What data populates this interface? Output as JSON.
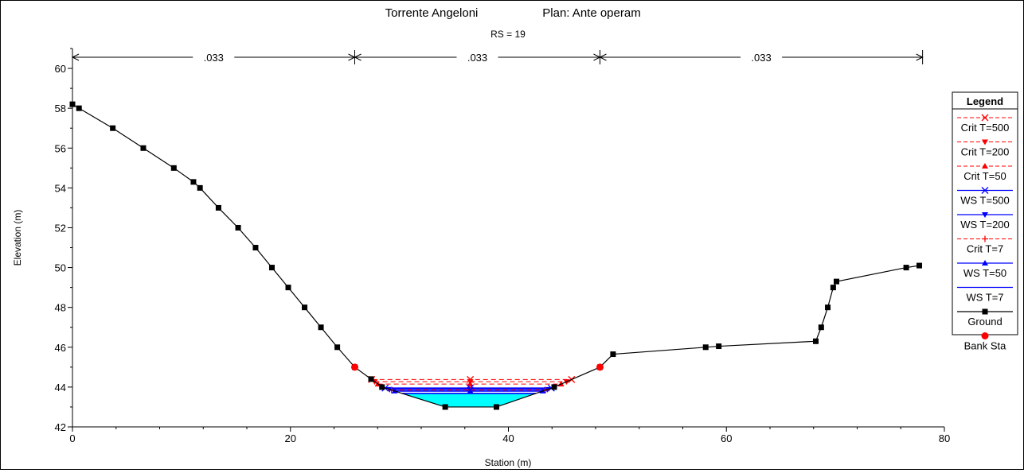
{
  "chart_data": {
    "type": "line",
    "title": "Torrente Angeloni",
    "plan_label": "Plan: Ante operam",
    "subtitle": "RS = 19",
    "xlabel": "Station (m)",
    "ylabel": "Elevation (m)",
    "xlim": [
      0,
      80
    ],
    "ylim": [
      42,
      61
    ],
    "x_ticks": [
      0,
      20,
      40,
      60,
      80
    ],
    "y_ticks": [
      42,
      44,
      46,
      48,
      50,
      52,
      54,
      56,
      58,
      60
    ],
    "mannings": [
      {
        "from": 0,
        "to": 25.9,
        "label": ".033"
      },
      {
        "from": 25.9,
        "to": 48.4,
        "label": ".033"
      },
      {
        "from": 48.4,
        "to": 78,
        "label": ".033"
      }
    ],
    "ground": {
      "name": "Ground",
      "x": [
        0,
        0.6,
        3.7,
        6.5,
        9.3,
        11.1,
        11.7,
        13.4,
        15.2,
        16.8,
        18.3,
        19.8,
        21.3,
        22.8,
        24.3,
        25.9,
        27.4,
        28.4,
        34.2,
        38.9,
        44.2,
        48.4,
        49.6,
        58.1,
        59.3,
        68.2,
        68.7,
        69.3,
        69.8,
        70.1,
        76.5,
        77.7
      ],
      "y": [
        58.2,
        58,
        57,
        56,
        55,
        54.3,
        54,
        53,
        52,
        51,
        50,
        49,
        48,
        47,
        46,
        45,
        44.4,
        44,
        43,
        43,
        44,
        45,
        45.65,
        46,
        46.05,
        46.3,
        47,
        48,
        49,
        49.3,
        50,
        50.1
      ]
    },
    "bank_stations": {
      "name": "Bank Sta",
      "x": [
        25.9,
        48.4
      ],
      "y": [
        45,
        45
      ]
    },
    "water_surfaces": [
      {
        "name": "Crit T=500",
        "elev": 44.38,
        "style": "dashed",
        "color": "#ff0000",
        "marker": "x"
      },
      {
        "name": "Crit T=200",
        "elev": 44.27,
        "style": "dashed",
        "color": "#ff0000",
        "marker": "tri-down"
      },
      {
        "name": "Crit T=50",
        "elev": 44.15,
        "style": "dashed",
        "color": "#ff0000",
        "marker": "tri-up"
      },
      {
        "name": "WS T=500",
        "elev": 43.95,
        "style": "solid",
        "color": "#0000ff",
        "marker": "x"
      },
      {
        "name": "WS T=200",
        "elev": 43.88,
        "style": "solid",
        "color": "#0000ff",
        "marker": "tri-down"
      },
      {
        "name": "Crit T=7",
        "elev": 43.85,
        "style": "dashed",
        "color": "#ff0000",
        "marker": "plus"
      },
      {
        "name": "WS T=50",
        "elev": 43.8,
        "style": "solid",
        "color": "#0000ff",
        "marker": "tri-up"
      },
      {
        "name": "WS T=7",
        "elev": 43.68,
        "style": "solid",
        "color": "#0000ff",
        "marker": "none"
      }
    ],
    "water_fill_color": "#00ffff",
    "legend": {
      "title": "Legend",
      "position": "right",
      "entries": [
        {
          "label": "Crit T=500",
          "line": "dashed",
          "color": "#ff0000",
          "marker": "x"
        },
        {
          "label": "Crit T=200",
          "line": "dashed",
          "color": "#ff0000",
          "marker": "tri-down"
        },
        {
          "label": "Crit T=50",
          "line": "dashed",
          "color": "#ff0000",
          "marker": "tri-up"
        },
        {
          "label": "WS T=500",
          "line": "solid",
          "color": "#0000ff",
          "marker": "x"
        },
        {
          "label": "WS T=200",
          "line": "solid",
          "color": "#0000ff",
          "marker": "tri-down"
        },
        {
          "label": "Crit T=7",
          "line": "dashed",
          "color": "#ff0000",
          "marker": "plus"
        },
        {
          "label": "WS T=50",
          "line": "solid",
          "color": "#0000ff",
          "marker": "tri-up"
        },
        {
          "label": "WS T=7",
          "line": "solid",
          "color": "#0000ff",
          "marker": "none"
        },
        {
          "label": "Ground",
          "line": "solid",
          "color": "#000000",
          "marker": "square"
        },
        {
          "label": "Bank Sta",
          "line": "none",
          "color": "#ff0000",
          "marker": "circle"
        }
      ]
    }
  }
}
